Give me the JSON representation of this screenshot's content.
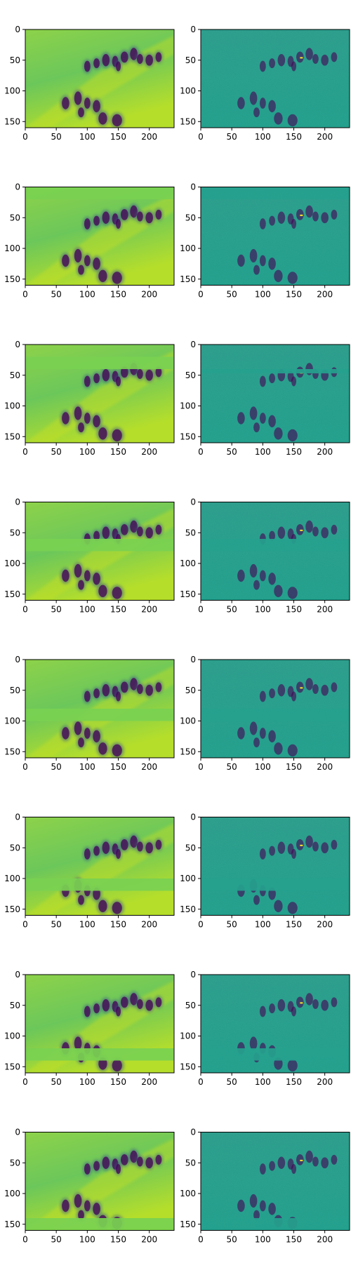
{
  "colors": {
    "background": "#ffffff",
    "axes_edge": "#000000",
    "viridis_dark": "#440154",
    "viridis_mid": "#21918c",
    "viridis_light": "#5ec962",
    "viridis_bright": "#fde725",
    "left_panel_base": "#6cc75a",
    "right_panel_base": "#1f9e89"
  },
  "figure": {
    "rows": 8,
    "columns": 2,
    "colormap": "viridis",
    "panel_contents": [
      "grayscale reconstruction heatmap of a pedestrian scene",
      "difference / residual heatmap of the same scene"
    ]
  },
  "axes": {
    "x_ticks": [
      "0",
      "50",
      "100",
      "150",
      "200"
    ],
    "y_ticks": [
      "0",
      "50",
      "100",
      "150"
    ],
    "x_range": [
      0,
      240
    ],
    "y_range": [
      0,
      160
    ]
  },
  "chart_data": {
    "type": "heatmap",
    "rows": [
      {
        "row": 1,
        "left_blank_bands": [],
        "right_blank_bands": []
      },
      {
        "row": 2,
        "left_blank_bands": [
          [
            0,
            20
          ]
        ],
        "right_blank_bands": [
          [
            0,
            20
          ]
        ]
      },
      {
        "row": 3,
        "left_blank_bands": [
          [
            20,
            40
          ]
        ],
        "right_blank_bands": [
          [
            40,
            47
          ]
        ]
      },
      {
        "row": 4,
        "left_blank_bands": [
          [
            60,
            80
          ]
        ],
        "right_blank_bands": [
          [
            60,
            80
          ]
        ]
      },
      {
        "row": 5,
        "left_blank_bands": [
          [
            80,
            100
          ]
        ],
        "right_blank_bands": [
          [
            80,
            100
          ]
        ]
      },
      {
        "row": 6,
        "left_blank_bands": [
          [
            100,
            120
          ]
        ],
        "right_blank_bands": [
          [
            100,
            120
          ]
        ]
      },
      {
        "row": 7,
        "left_blank_bands": [
          [
            120,
            140
          ]
        ],
        "right_blank_bands": [
          [
            120,
            140
          ]
        ]
      },
      {
        "row": 8,
        "left_blank_bands": [
          [
            140,
            160
          ]
        ],
        "right_blank_bands": [
          [
            140,
            160
          ]
        ]
      }
    ]
  }
}
